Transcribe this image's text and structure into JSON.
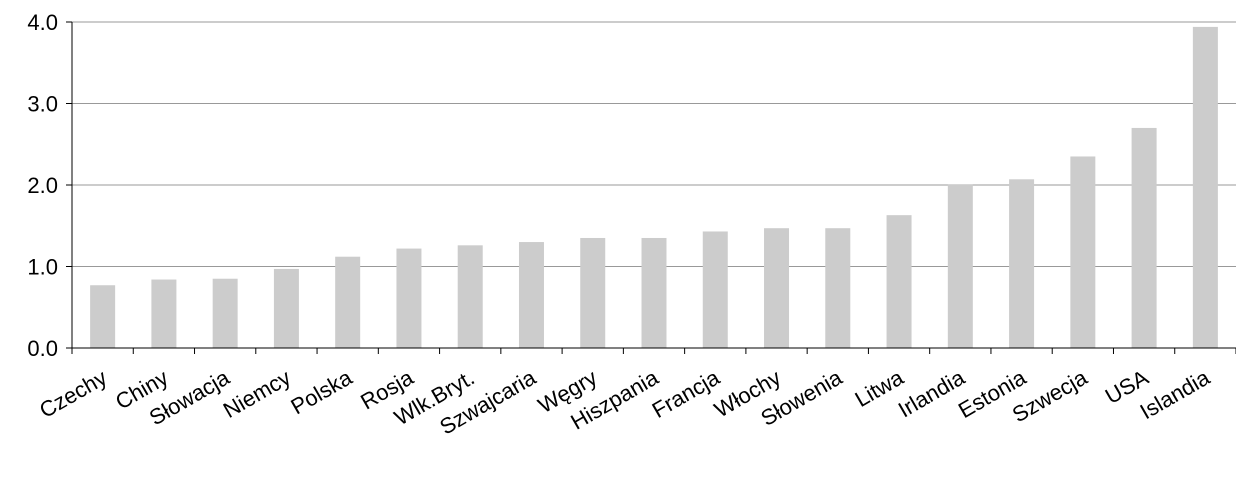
{
  "chart_data": {
    "type": "bar",
    "title": "",
    "xlabel": "",
    "ylabel": "",
    "categories": [
      "Czechy",
      "Chiny",
      "Słowacja",
      "Niemcy",
      "Polska",
      "Rosja",
      "Wlk.Bryt.",
      "Szwajcaria",
      "Węgry",
      "Hiszpania",
      "Francja",
      "Włochy",
      "Słowenia",
      "Litwa",
      "Irlandia",
      "Estonia",
      "Szwecja",
      "USA",
      "Islandia"
    ],
    "values": [
      0.77,
      0.84,
      0.85,
      0.97,
      1.12,
      1.22,
      1.26,
      1.3,
      1.35,
      1.35,
      1.43,
      1.47,
      1.47,
      1.63,
      2.01,
      2.07,
      2.35,
      2.7,
      3.94
    ],
    "ylim": [
      0,
      4
    ],
    "yticks": [
      "0.0",
      "1.0",
      "2.0",
      "3.0",
      "4.0"
    ],
    "grid": true,
    "legend": "none",
    "colors": {
      "bar": "#cccccc",
      "grid": "#999999",
      "axis": "#000000"
    }
  }
}
